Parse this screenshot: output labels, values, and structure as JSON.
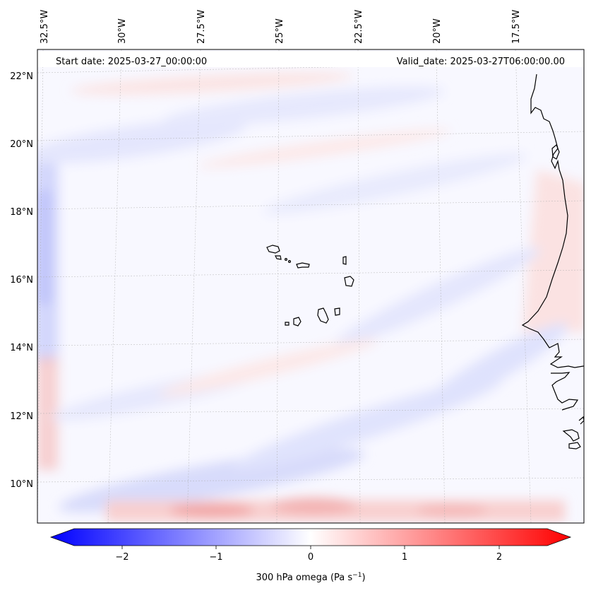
{
  "header": {
    "start_date": "Start date: 2025-03-27_00:00:00",
    "valid_date": "Valid_date: 2025-03-27T06:00:00.00"
  },
  "map": {
    "lon_labels": [
      "32.5°W",
      "30°W",
      "27.5°W",
      "25°W",
      "22.5°W",
      "20°W",
      "17.5°W"
    ],
    "lat_labels": [
      "22°N",
      "20°N",
      "18°N",
      "16°N",
      "14°N",
      "12°N",
      "10°N"
    ]
  },
  "colorbar": {
    "ticks": [
      "−2",
      "−1",
      "0",
      "1",
      "2"
    ],
    "label_main": "300 hPa omega (Pa s",
    "label_sup": "−1",
    "label_end": ")",
    "colors": {
      "negative": "#0000ff",
      "zero": "#ffffff",
      "positive": "#ff0000"
    }
  }
}
